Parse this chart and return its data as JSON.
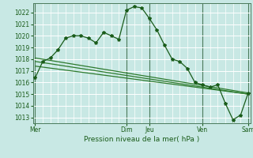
{
  "background_color": "#c8e8e4",
  "grid_color": "#ffffff",
  "line_color_main": "#1a5c1a",
  "line_color_trend": "#2d7a2d",
  "title": "Pression niveau de la mer( hPa )",
  "ylim": [
    1012.5,
    1022.8
  ],
  "yticks": [
    1013,
    1014,
    1015,
    1016,
    1017,
    1018,
    1019,
    1020,
    1021,
    1022
  ],
  "day_labels": [
    "Mer",
    "Dim",
    "Jeu",
    "Ven",
    "Sam"
  ],
  "day_positions": [
    0,
    12,
    15,
    22,
    28
  ],
  "xlim": [
    -0.3,
    28.3
  ],
  "series1_x": [
    0,
    1,
    2,
    3,
    4,
    5,
    6,
    7,
    8,
    9,
    10,
    11,
    12,
    13,
    14,
    15,
    16,
    17,
    18,
    19,
    20,
    21,
    22,
    23,
    24,
    25,
    26,
    27,
    28
  ],
  "series1_y": [
    1016.4,
    1017.8,
    1018.1,
    1018.8,
    1019.8,
    1020.0,
    1020.0,
    1019.8,
    1019.4,
    1020.3,
    1020.0,
    1019.7,
    1022.2,
    1022.5,
    1022.4,
    1021.5,
    1020.5,
    1019.2,
    1018.0,
    1017.8,
    1017.2,
    1016.0,
    1015.8,
    1015.6,
    1015.8,
    1014.2,
    1012.8,
    1013.2,
    1015.1
  ],
  "series2_x": [
    0,
    28
  ],
  "series2_y": [
    1018.1,
    1015.1
  ],
  "series3_x": [
    0,
    28
  ],
  "series3_y": [
    1017.8,
    1015.0
  ],
  "series4_x": [
    0,
    28
  ],
  "series4_y": [
    1017.4,
    1015.0
  ]
}
